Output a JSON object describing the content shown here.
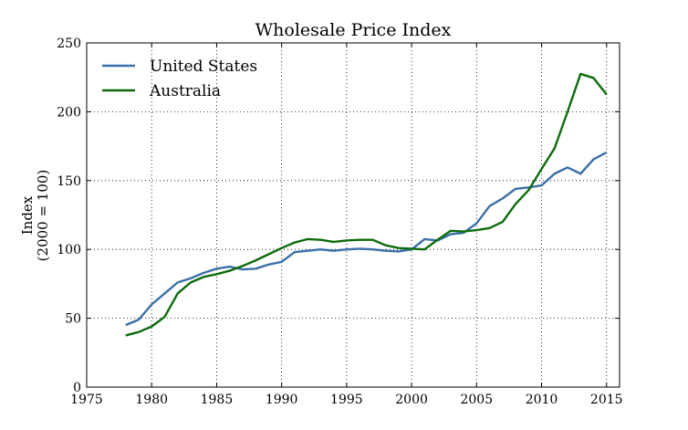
{
  "chart_data": {
    "type": "line",
    "title": "Wholesale Price Index",
    "ylabel": "Index",
    "ylabel_sub": "(2000 = 100)",
    "xlabel": "",
    "xlim": [
      1975,
      2016
    ],
    "ylim": [
      0,
      250
    ],
    "xticks": [
      1975,
      1980,
      1985,
      1990,
      1995,
      2000,
      2005,
      2010,
      2015
    ],
    "yticks": [
      0,
      50,
      100,
      150,
      200,
      250
    ],
    "grid": true,
    "legend_position": "top-left",
    "series": [
      {
        "name": "United States",
        "color": "#3a6fa8",
        "x": [
          1978,
          1979,
          1980,
          1981,
          1982,
          1983,
          1984,
          1985,
          1986,
          1987,
          1988,
          1989,
          1990,
          1991,
          1992,
          1993,
          1994,
          1995,
          1996,
          1997,
          1998,
          1999,
          2000,
          2001,
          2002,
          2003,
          2004,
          2005,
          2006,
          2007,
          2008,
          2009,
          2010,
          2011,
          2012,
          2013,
          2014,
          2015
        ],
        "values": [
          45,
          49,
          60,
          68,
          76,
          79,
          83,
          86,
          87.5,
          85.5,
          86,
          89,
          91,
          98,
          99,
          100,
          99,
          100,
          100.5,
          100,
          99,
          98.5,
          100,
          107.5,
          106.5,
          111,
          112,
          119,
          131.5,
          137,
          144,
          145,
          146.5,
          155,
          159.5,
          155,
          165.5,
          170.5
        ]
      },
      {
        "name": "Australia",
        "color": "#0d6b0d",
        "x": [
          1978,
          1979,
          1980,
          1981,
          1982,
          1983,
          1984,
          1985,
          1986,
          1987,
          1988,
          1989,
          1990,
          1991,
          1992,
          1993,
          1994,
          1995,
          1996,
          1997,
          1998,
          1999,
          2000,
          2001,
          2002,
          2003,
          2004,
          2005,
          2006,
          2007,
          2008,
          2009,
          2010,
          2011,
          2012,
          2013,
          2014,
          2015
        ],
        "values": [
          37.5,
          40,
          44,
          51,
          68,
          76,
          80,
          82,
          84.5,
          88,
          92,
          96.5,
          101,
          105,
          107.5,
          107,
          105.5,
          106.5,
          107,
          107,
          103,
          101,
          100.5,
          100,
          107,
          113.5,
          113,
          114,
          115.5,
          120,
          133,
          143,
          158.5,
          173.5,
          200,
          227.5,
          224.5,
          212.5
        ]
      }
    ]
  }
}
